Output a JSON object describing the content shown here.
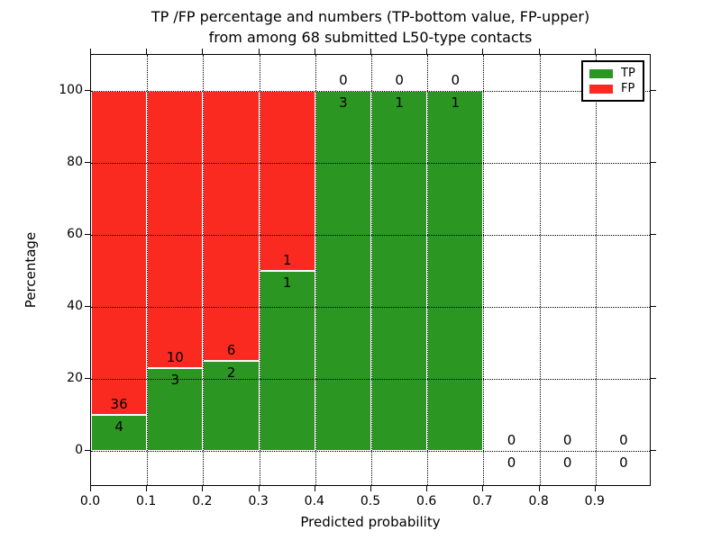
{
  "chart_data": {
    "type": "bar",
    "stacked": true,
    "title_line1": "TP /FP percentage and numbers (TP-bottom value, FP-upper)",
    "title_line2": "from among 68 submitted L50-type contacts",
    "xlabel": "Predicted probability",
    "ylabel": "Percentage",
    "xlim": [
      0.0,
      1.0
    ],
    "ylim": [
      -10,
      110
    ],
    "x_tick_values": [
      0.0,
      0.1,
      0.2,
      0.3,
      0.4,
      0.5,
      0.6,
      0.7,
      0.8,
      0.9
    ],
    "x_tick_labels": [
      "0.0",
      "0.1",
      "0.2",
      "0.3",
      "0.4",
      "0.5",
      "0.6",
      "0.7",
      "0.8",
      "0.9"
    ],
    "y_tick_values": [
      0,
      20,
      40,
      60,
      80,
      100
    ],
    "y_tick_labels": [
      "0",
      "20",
      "40",
      "60",
      "80",
      "100"
    ],
    "grid": "dotted",
    "legend_position": "upper right",
    "series_colors": {
      "tp": "#2b9621",
      "fp": "#fb2a20"
    },
    "legend": [
      {
        "label": "TP",
        "series": "tp"
      },
      {
        "label": "FP",
        "series": "fp"
      }
    ],
    "bins": [
      {
        "range": [
          0.0,
          0.1
        ],
        "tp": 4,
        "fp": 36,
        "tp_pct": 10.0,
        "fp_pct": 90.0
      },
      {
        "range": [
          0.1,
          0.2
        ],
        "tp": 3,
        "fp": 10,
        "tp_pct": 23.08,
        "fp_pct": 76.92
      },
      {
        "range": [
          0.2,
          0.3
        ],
        "tp": 2,
        "fp": 6,
        "tp_pct": 25.0,
        "fp_pct": 75.0
      },
      {
        "range": [
          0.3,
          0.4
        ],
        "tp": 1,
        "fp": 1,
        "tp_pct": 50.0,
        "fp_pct": 50.0
      },
      {
        "range": [
          0.4,
          0.5
        ],
        "tp": 3,
        "fp": 0,
        "tp_pct": 100.0,
        "fp_pct": 0.0
      },
      {
        "range": [
          0.5,
          0.6
        ],
        "tp": 1,
        "fp": 0,
        "tp_pct": 100.0,
        "fp_pct": 0.0
      },
      {
        "range": [
          0.6,
          0.7
        ],
        "tp": 1,
        "fp": 0,
        "tp_pct": 100.0,
        "fp_pct": 0.0
      },
      {
        "range": [
          0.7,
          0.8
        ],
        "tp": 0,
        "fp": 0,
        "tp_pct": 0.0,
        "fp_pct": 0.0
      },
      {
        "range": [
          0.8,
          0.9
        ],
        "tp": 0,
        "fp": 0,
        "tp_pct": 0.0,
        "fp_pct": 0.0
      },
      {
        "range": [
          0.9,
          1.0
        ],
        "tp": 0,
        "fp": 0,
        "tp_pct": 0.0,
        "fp_pct": 0.0
      }
    ]
  }
}
